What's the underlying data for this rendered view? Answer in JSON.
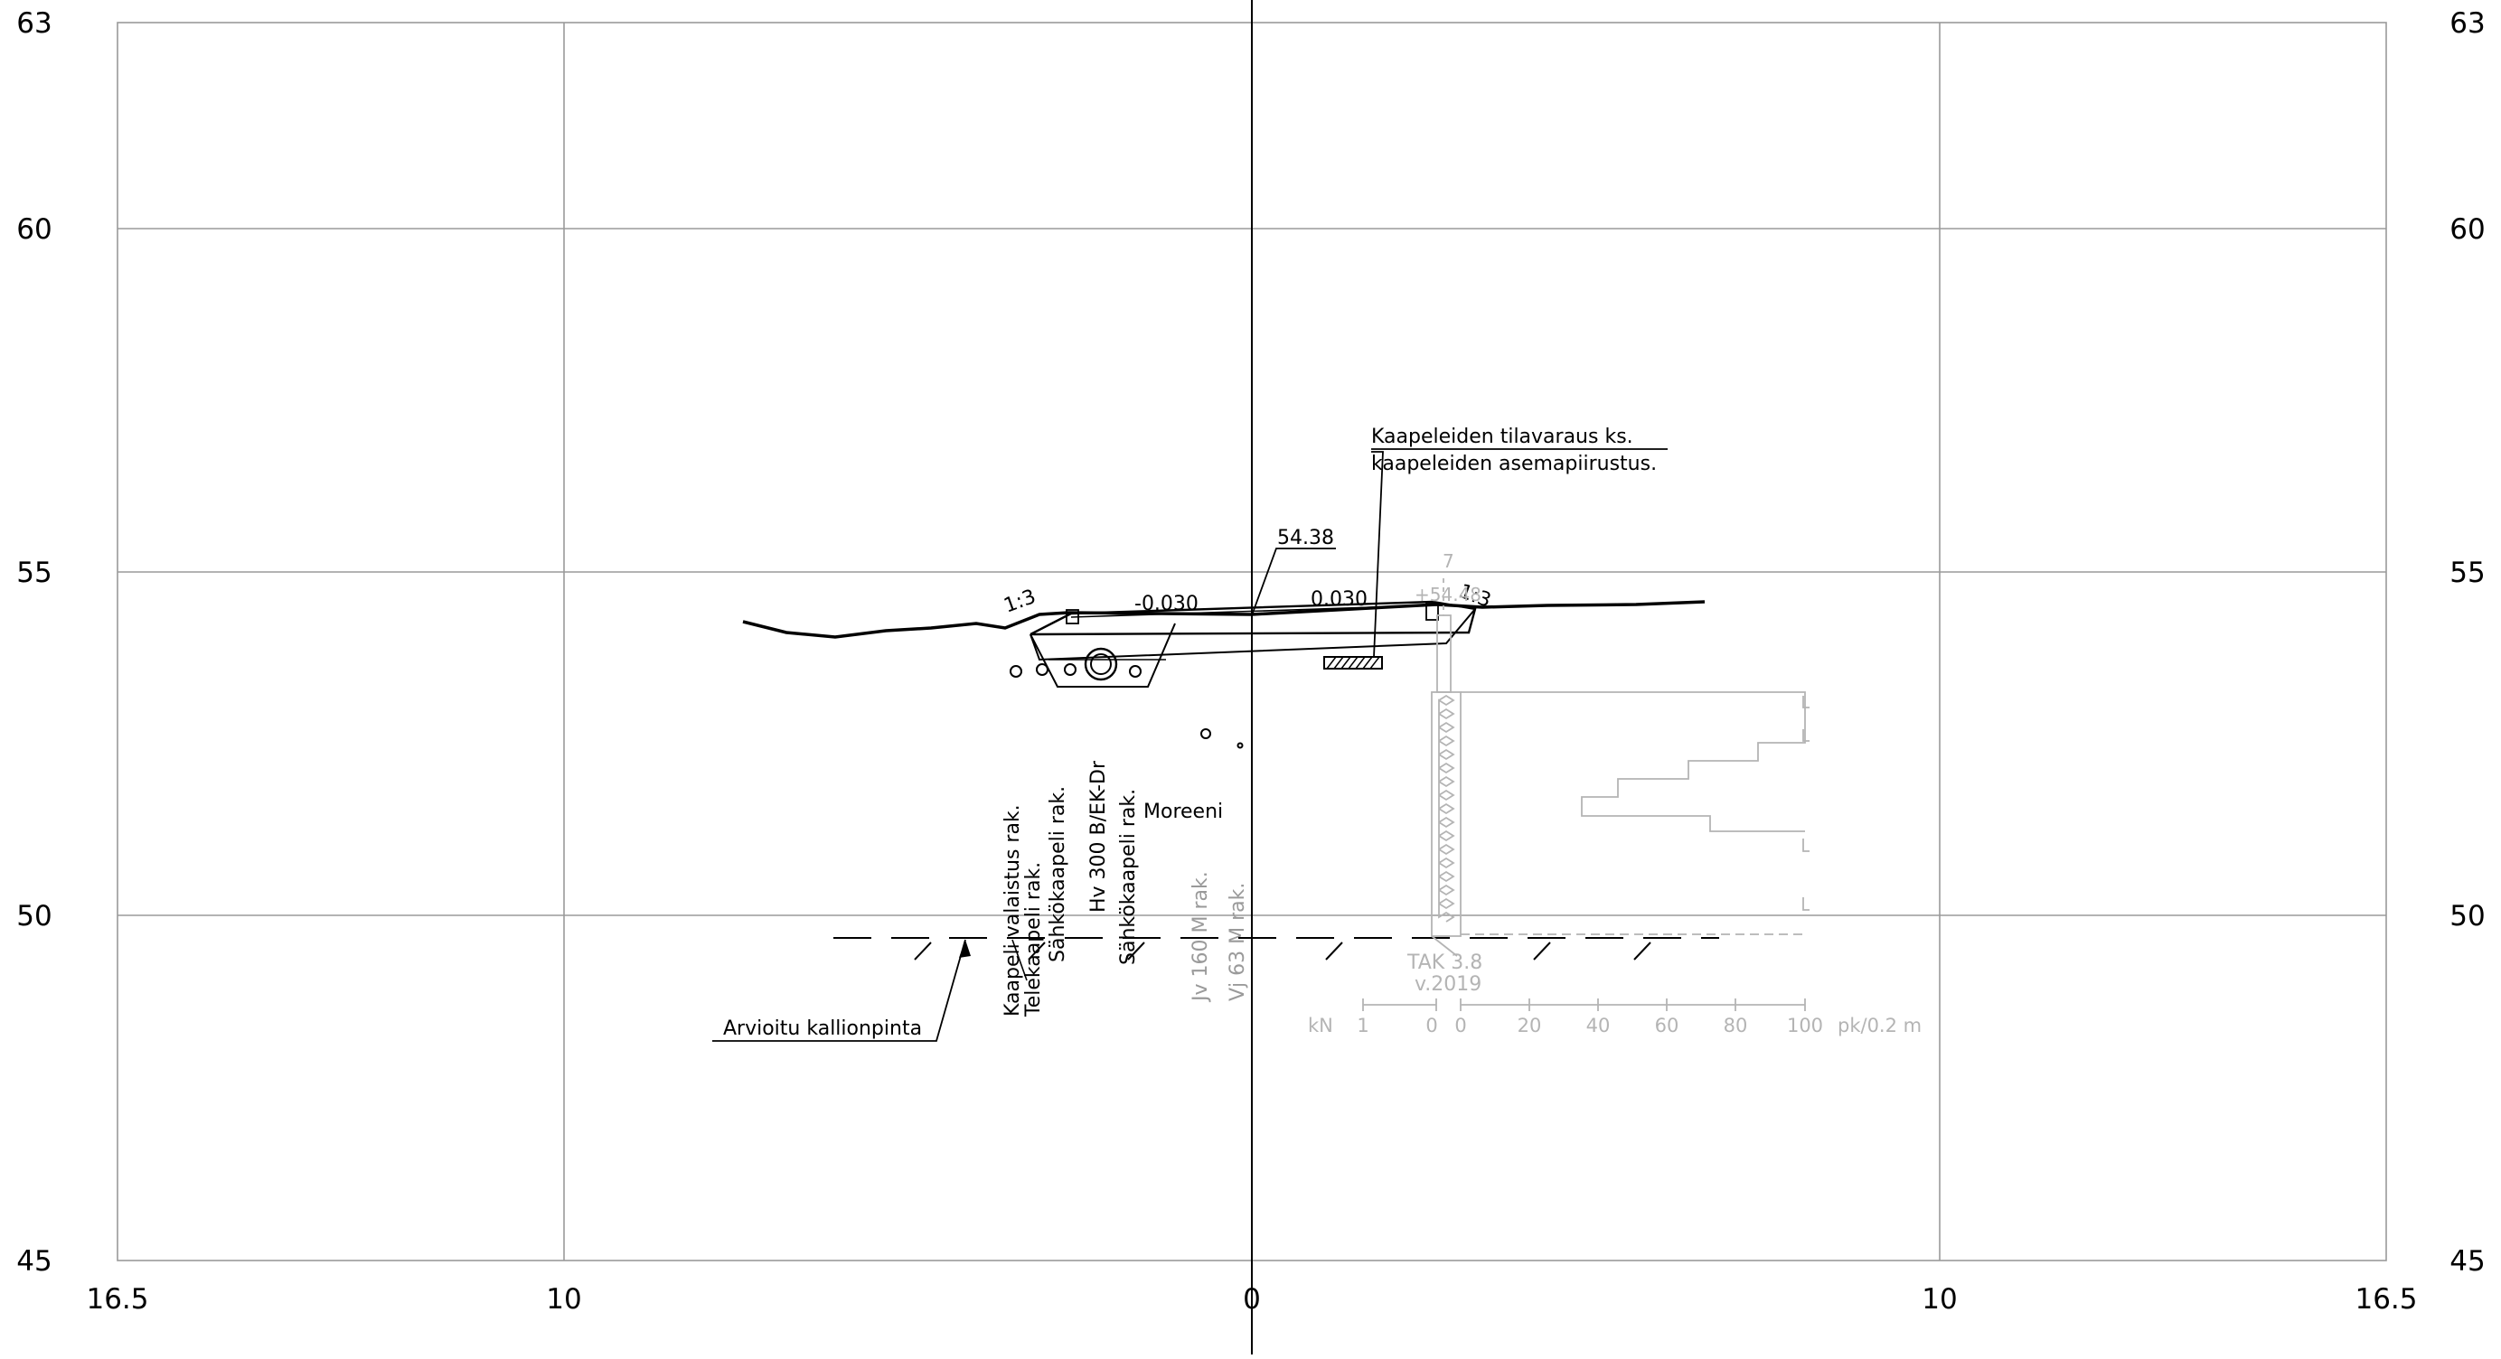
{
  "axes": {
    "y_ticks": [
      {
        "value": 63,
        "label": "63"
      },
      {
        "value": 60,
        "label": "60"
      },
      {
        "value": 55,
        "label": "55"
      },
      {
        "value": 50,
        "label": "50"
      },
      {
        "value": 45,
        "label": "45"
      }
    ],
    "x_ticks": [
      {
        "value": -16.5,
        "label": "16.5"
      },
      {
        "value": -10,
        "label": "10"
      },
      {
        "value": 0,
        "label": "0"
      },
      {
        "value": 10,
        "label": "10"
      },
      {
        "value": 16.5,
        "label": "16.5"
      }
    ],
    "x_range": [
      -16.5,
      16.5
    ],
    "y_range": [
      45,
      63
    ]
  },
  "annotations": {
    "cable_reservation_line1": "Kaapeleiden tilavaraus ks.",
    "cable_reservation_line2": "kaapeleiden asemapiirustus.",
    "elevation": "54.38",
    "slope_left": "1:3",
    "slope_right": "1:3",
    "crossfall_left": "-0.030",
    "crossfall_right": "0.030",
    "soil": "Moreeni",
    "bedrock": "Arvioitu kallionpinta",
    "cable_lighting": "Kaapeli valaistus rak.",
    "cable_telecom": "Telekaapeli rak.",
    "cable_power_1": "Sähkökaapeli rak.",
    "sewer_pipe": "Hv 300 B/EK-Dr",
    "cable_power_2": "Sähkökaapeli rak.",
    "water_pipe": "Jv 160 M rak.",
    "wastewater_pipe": "Vj 63 M rak."
  },
  "sounding": {
    "label": "TAK 3.8",
    "year": "v.2019",
    "top_marker": "7",
    "top_value": "+54.48",
    "scale_unit_left": "kN",
    "scale_unit_right": "pk/0.2 m",
    "scale_left_ticks": [
      "1",
      "0"
    ],
    "scale_right_ticks": [
      "0",
      "20",
      "40",
      "60",
      "80",
      "100"
    ]
  },
  "colors": {
    "ink": "#000000",
    "grid": "#9a9a9a",
    "sounding": "#b4b4b4"
  }
}
